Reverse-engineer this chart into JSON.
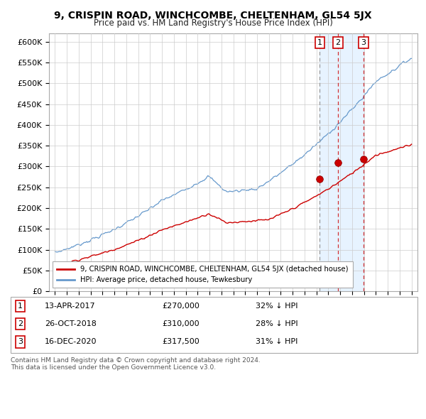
{
  "title": "9, CRISPIN ROAD, WINCHCOMBE, CHELTENHAM, GL54 5JX",
  "subtitle": "Price paid vs. HM Land Registry's House Price Index (HPI)",
  "ylabel_ticks": [
    "£0",
    "£50K",
    "£100K",
    "£150K",
    "£200K",
    "£250K",
    "£300K",
    "£350K",
    "£400K",
    "£450K",
    "£500K",
    "£550K",
    "£600K"
  ],
  "ytick_values": [
    0,
    50000,
    100000,
    150000,
    200000,
    250000,
    300000,
    350000,
    400000,
    450000,
    500000,
    550000,
    600000
  ],
  "ylim": [
    0,
    620000
  ],
  "xlim_start": 1994.5,
  "xlim_end": 2025.5,
  "transactions": [
    {
      "label": "1",
      "date": "13-APR-2017",
      "price": 270000,
      "pct": "32%",
      "x": 2017.28,
      "vline_style": "gray_dash"
    },
    {
      "label": "2",
      "date": "26-OCT-2018",
      "price": 310000,
      "pct": "28%",
      "x": 2018.82,
      "vline_style": "red_dash"
    },
    {
      "label": "3",
      "date": "16-DEC-2020",
      "price": 317500,
      "pct": "31%",
      "x": 2020.96,
      "vline_style": "red_dash"
    }
  ],
  "legend_line1": "9, CRISPIN ROAD, WINCHCOMBE, CHELTENHAM, GL54 5JX (detached house)",
  "legend_line2": "HPI: Average price, detached house, Tewkesbury",
  "footer1": "Contains HM Land Registry data © Crown copyright and database right 2024.",
  "footer2": "This data is licensed under the Open Government Licence v3.0.",
  "red_color": "#cc0000",
  "blue_color": "#6699cc",
  "shade_color": "#ddeeff",
  "background_color": "#ffffff",
  "grid_color": "#cccccc"
}
